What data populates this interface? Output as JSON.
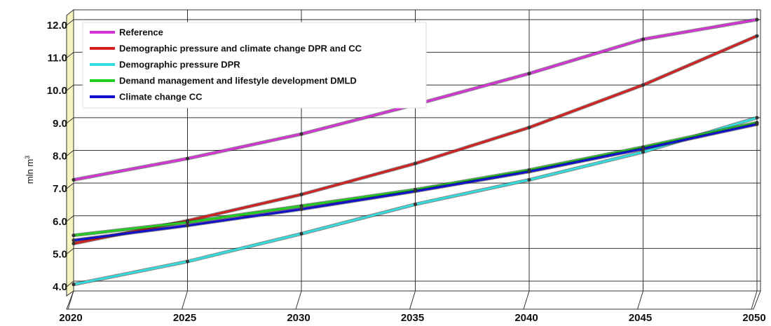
{
  "chart_data": {
    "type": "line",
    "title": "",
    "xlabel": "",
    "ylabel": "mln m",
    "ylabel_superscript": "3",
    "x": [
      2020,
      2025,
      2030,
      2035,
      2040,
      2045,
      2050
    ],
    "x_tick_labels": [
      "2020",
      "2025",
      "2030",
      "2035",
      "2040",
      "2045",
      "2050"
    ],
    "y_tick_values": [
      4,
      5,
      6,
      7,
      8,
      9,
      10,
      11,
      12
    ],
    "y_tick_labels": [
      "4.0",
      "5.0",
      "6.0",
      "7.0",
      "8.0",
      "9.0",
      "10.0",
      "11.0",
      "12.0"
    ],
    "xlim": [
      2020,
      2050
    ],
    "ylim": [
      3.7,
      12.3
    ],
    "grid": true,
    "legend_position": "top-left",
    "series": [
      {
        "name": "Reference",
        "color": "#d633d6",
        "values": [
          7.1,
          7.75,
          8.5,
          9.4,
          10.35,
          11.4,
          12.0
        ]
      },
      {
        "name": "Demographic pressure and climate change DPR and CC",
        "color": "#d42020",
        "values": [
          5.15,
          5.85,
          6.65,
          7.6,
          8.7,
          10.0,
          11.5
        ]
      },
      {
        "name": "Demographic pressure DPR",
        "color": "#33dddd",
        "values": [
          3.9,
          4.6,
          5.45,
          6.35,
          7.1,
          7.95,
          9.0
        ]
      },
      {
        "name": "Demand management and lifestyle development DMLD",
        "color": "#22cc22",
        "values": [
          5.4,
          5.8,
          6.3,
          6.8,
          7.4,
          8.1,
          8.85
        ]
      },
      {
        "name": "Climate change CC",
        "color": "#1111cc",
        "values": [
          5.25,
          5.7,
          6.2,
          6.75,
          7.35,
          8.05,
          8.8
        ]
      }
    ]
  }
}
